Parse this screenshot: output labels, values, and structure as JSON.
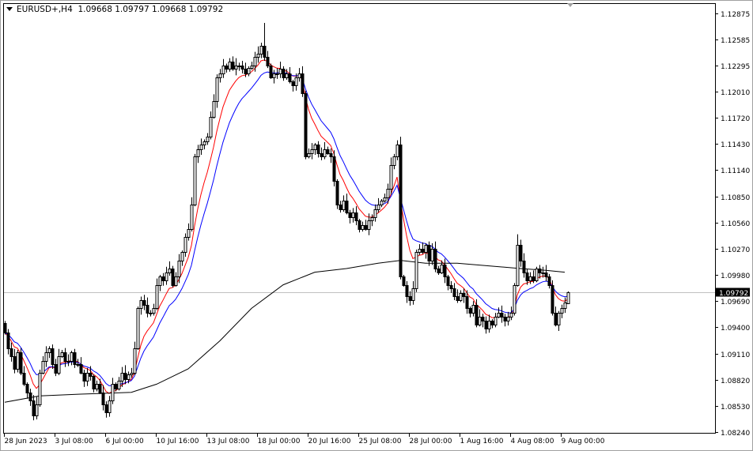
{
  "header": {
    "symbol": "EURUSD+,H4",
    "ohlc": "1.09668 1.09797 1.09668 1.09792"
  },
  "current_price": "1.09792",
  "chart_data": {
    "type": "candlestick",
    "timeframe": "H4",
    "price_axis": {
      "ticks": [
        "1.12875",
        "1.12585",
        "1.12295",
        "1.12010",
        "1.11720",
        "1.11430",
        "1.11140",
        "1.10850",
        "1.10560",
        "1.10270",
        "1.09980",
        "1.09690",
        "1.09400",
        "1.09110",
        "1.08820",
        "1.08530",
        "1.08240"
      ],
      "range": [
        1.0824,
        1.12875
      ]
    },
    "time_axis": {
      "ticks": [
        {
          "label": "28 Jun 2023",
          "candle": 0
        },
        {
          "label": "3 Jul 08:00",
          "candle": 16
        },
        {
          "label": "6 Jul 00:00",
          "candle": 32
        },
        {
          "label": "10 Jul 16:00",
          "candle": 48
        },
        {
          "label": "13 Jul 08:00",
          "candle": 64
        },
        {
          "label": "18 Jul 00:00",
          "candle": 80
        },
        {
          "label": "20 Jul 16:00",
          "candle": 96
        },
        {
          "label": "25 Jul 08:00",
          "candle": 112
        },
        {
          "label": "28 Jul 00:00",
          "candle": 128
        },
        {
          "label": "1 Aug 16:00",
          "candle": 144
        },
        {
          "label": "4 Aug 08:00",
          "candle": 160
        },
        {
          "label": "9 Aug 00:00",
          "candle": 176
        }
      ]
    },
    "first_open": 1.0945,
    "last_candle": {
      "open": 1.09668,
      "high": 1.09797,
      "low": 1.09668,
      "close": 1.09792
    },
    "closes": [
      1.0934,
      1.0917,
      1.0908,
      1.0894,
      1.0912,
      1.089,
      1.0877,
      1.0868,
      1.0859,
      1.0842,
      1.0855,
      1.089,
      1.0903,
      1.0912,
      1.0917,
      1.0899,
      1.089,
      1.0908,
      1.0912,
      1.0903,
      1.0903,
      1.0912,
      1.0899,
      1.0899,
      1.089,
      1.0881,
      1.089,
      1.0886,
      1.0872,
      1.0877,
      1.0868,
      1.0855,
      1.0846,
      1.0859,
      1.0877,
      1.0872,
      1.0881,
      1.089,
      1.0883,
      1.0888,
      1.089,
      1.0917,
      1.0961,
      1.097,
      1.0965,
      1.0956,
      1.0956,
      1.0961,
      1.0987,
      1.0996,
      1.0992,
      1.1001,
      1.1005,
      1.0987,
      1.0996,
      1.1014,
      1.1023,
      1.104,
      1.1049,
      1.1076,
      1.1129,
      1.1137,
      1.1142,
      1.1146,
      1.1151,
      1.1173,
      1.119,
      1.1217,
      1.1221,
      1.123,
      1.1226,
      1.1234,
      1.1226,
      1.123,
      1.123,
      1.1226,
      1.1221,
      1.1227,
      1.123,
      1.1239,
      1.1243,
      1.1252,
      1.1239,
      1.123,
      1.1217,
      1.1221,
      1.1221,
      1.1226,
      1.1217,
      1.1221,
      1.1212,
      1.1208,
      1.1217,
      1.1221,
      1.1199,
      1.1129,
      1.1133,
      1.1137,
      1.1142,
      1.1133,
      1.1129,
      1.1137,
      1.1133,
      1.1129,
      1.1102,
      1.1076,
      1.1071,
      1.108,
      1.1067,
      1.1062,
      1.1067,
      1.1058,
      1.1049,
      1.1053,
      1.1049,
      1.1058,
      1.1062,
      1.1071,
      1.1076,
      1.108,
      1.1084,
      1.1093,
      1.112,
      1.1129,
      1.1142,
      1.0996,
      1.0987,
      1.0974,
      1.097,
      1.0983,
      1.1023,
      1.1027,
      1.1023,
      1.1031,
      1.1014,
      1.1027,
      1.1005,
      1.1001,
      1.1009,
      1.0996,
      1.0987,
      1.0983,
      1.0974,
      1.097,
      1.0978,
      1.0974,
      1.0961,
      1.0956,
      1.0965,
      1.0943,
      1.0952,
      1.0947,
      1.0939,
      1.0947,
      1.0943,
      1.0952,
      1.0956,
      1.0952,
      1.0947,
      1.0952,
      1.0956,
      1.0987,
      1.1031,
      1.1014,
      1.1001,
      1.0992,
      1.0996,
      1.0992,
      1.1005,
      1.1001,
      1.1001,
      1.0996,
      1.0987,
      1.0956,
      1.0943,
      1.0956,
      1.0961,
      1.0967,
      1.09792
    ],
    "spike_highs": [
      {
        "candle": 82,
        "high": 1.1277
      },
      {
        "candle": 125,
        "high": 1.1151
      },
      {
        "candle": 162,
        "high": 1.1043
      }
    ],
    "moving_averages": [
      {
        "color": "#ff0000"
      },
      {
        "color": "#0000ff"
      },
      {
        "color": "#000000",
        "points": [
          [
            0,
            1.0857
          ],
          [
            11,
            1.0864
          ],
          [
            24,
            1.0866
          ],
          [
            40,
            1.0868
          ],
          [
            48,
            1.0877
          ],
          [
            58,
            1.0894
          ],
          [
            68,
            1.0925
          ],
          [
            78,
            1.0961
          ],
          [
            88,
            1.0987
          ],
          [
            98,
            1.1001
          ],
          [
            108,
            1.1005
          ],
          [
            118,
            1.1011
          ],
          [
            125,
            1.1014
          ],
          [
            133,
            1.1011
          ],
          [
            143,
            1.1011
          ],
          [
            153,
            1.1008
          ],
          [
            163,
            1.1005
          ],
          [
            171,
            1.1003
          ],
          [
            177,
            1.1001
          ]
        ]
      }
    ],
    "bull_color": "#ffffff",
    "bear_color": "#000000",
    "grid": false
  }
}
